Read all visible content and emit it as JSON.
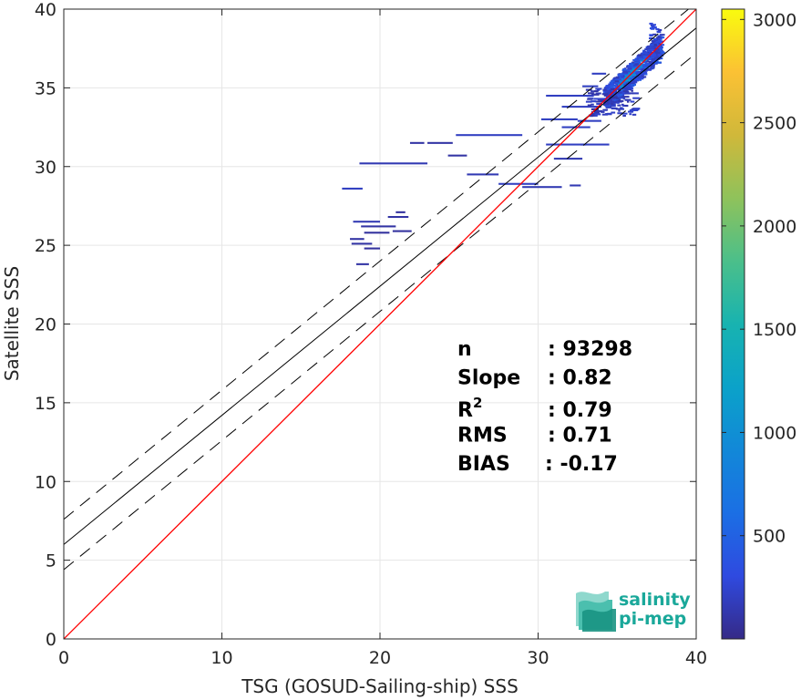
{
  "chart_data": {
    "type": "heatmap",
    "title": "",
    "xlabel": "TSG (GOSUD-Sailing-ship) SSS",
    "ylabel": "Satellite SSS",
    "xlim": [
      0,
      40
    ],
    "ylim": [
      0,
      40
    ],
    "x_ticks": [
      "0",
      "10",
      "20",
      "30",
      "40"
    ],
    "y_ticks": [
      "0",
      "5",
      "10",
      "15",
      "20",
      "25",
      "30",
      "35",
      "40"
    ],
    "grid": true,
    "colorbar": {
      "range": [
        0,
        3050
      ],
      "ticks": [
        "500",
        "1000",
        "1500",
        "2000",
        "2500",
        "3000"
      ],
      "colormap": "parula"
    },
    "lines": {
      "identity": {
        "slope": 1,
        "intercept": 0,
        "color": "#ff0000"
      },
      "regression": {
        "slope": 0.82,
        "intercept": 6.0,
        "color": "#000000"
      },
      "upper_bound": {
        "slope": 0.82,
        "intercept": 7.6,
        "style": "dashed"
      },
      "lower_bound": {
        "slope": 0.82,
        "intercept": 4.4,
        "style": "dashed"
      }
    },
    "density_segments": [
      {
        "x1": 17.6,
        "x2": 18.9,
        "y": 28.6,
        "c": 200
      },
      {
        "x1": 18.7,
        "x2": 23.0,
        "y": 30.2,
        "c": 150
      },
      {
        "x1": 18.3,
        "x2": 20.0,
        "y": 26.5,
        "c": 150
      },
      {
        "x1": 18.8,
        "x2": 21.0,
        "y": 26.2,
        "c": 100
      },
      {
        "x1": 20.5,
        "x2": 21.8,
        "y": 26.8,
        "c": 100
      },
      {
        "x1": 18.1,
        "x2": 19.0,
        "y": 25.4,
        "c": 100
      },
      {
        "x1": 18.2,
        "x2": 19.5,
        "y": 25.1,
        "c": 100
      },
      {
        "x1": 19.0,
        "x2": 20.0,
        "y": 24.8,
        "c": 80
      },
      {
        "x1": 19.0,
        "x2": 20.6,
        "y": 25.8,
        "c": 80
      },
      {
        "x1": 20.8,
        "x2": 22.0,
        "y": 25.9,
        "c": 80
      },
      {
        "x1": 21.0,
        "x2": 21.6,
        "y": 27.1,
        "c": 80
      },
      {
        "x1": 18.5,
        "x2": 19.3,
        "y": 23.8,
        "c": 100
      },
      {
        "x1": 21.9,
        "x2": 22.8,
        "y": 31.5,
        "c": 100
      },
      {
        "x1": 23.0,
        "x2": 24.6,
        "y": 31.5,
        "c": 100
      },
      {
        "x1": 24.3,
        "x2": 25.5,
        "y": 30.7,
        "c": 100
      },
      {
        "x1": 24.8,
        "x2": 29.0,
        "y": 32.0,
        "c": 200
      },
      {
        "x1": 25.5,
        "x2": 27.5,
        "y": 29.5,
        "c": 150
      },
      {
        "x1": 27.5,
        "x2": 30.0,
        "y": 28.9,
        "c": 200
      },
      {
        "x1": 29.0,
        "x2": 31.5,
        "y": 28.7,
        "c": 150
      },
      {
        "x1": 32.0,
        "x2": 32.7,
        "y": 28.8,
        "c": 150
      },
      {
        "x1": 30.2,
        "x2": 32.5,
        "y": 33.0,
        "c": 200
      },
      {
        "x1": 30.5,
        "x2": 33.0,
        "y": 31.4,
        "c": 200
      },
      {
        "x1": 31.0,
        "x2": 32.8,
        "y": 30.5,
        "c": 150
      },
      {
        "x1": 32.7,
        "x2": 34.5,
        "y": 31.4,
        "c": 200
      },
      {
        "x1": 31.5,
        "x2": 33.3,
        "y": 32.5,
        "c": 200
      },
      {
        "x1": 30.5,
        "x2": 33.5,
        "y": 34.5,
        "c": 200
      },
      {
        "x1": 31.5,
        "x2": 34.0,
        "y": 33.8,
        "c": 200
      },
      {
        "x1": 32.5,
        "x2": 34.0,
        "y": 32.9,
        "c": 200
      },
      {
        "x1": 33.4,
        "x2": 34.3,
        "y": 35.9,
        "c": 200
      },
      {
        "x1": 32.8,
        "x2": 33.8,
        "y": 35.1,
        "c": 200
      },
      {
        "x1": 33.5,
        "x2": 35.0,
        "y": 34.3,
        "c": 250
      }
    ],
    "stats": [
      {
        "label": "n",
        "value": ": 93298"
      },
      {
        "label": "Slope",
        "value": ": 0.82"
      },
      {
        "label": "R",
        "sup": "2",
        "value": ": 0.79"
      },
      {
        "label": "RMS",
        "value": ": 0.71"
      },
      {
        "label": "BIAS",
        "value": ": -0.17"
      }
    ]
  },
  "logo": {
    "line1": "salinity",
    "line2": "pi-mep"
  }
}
